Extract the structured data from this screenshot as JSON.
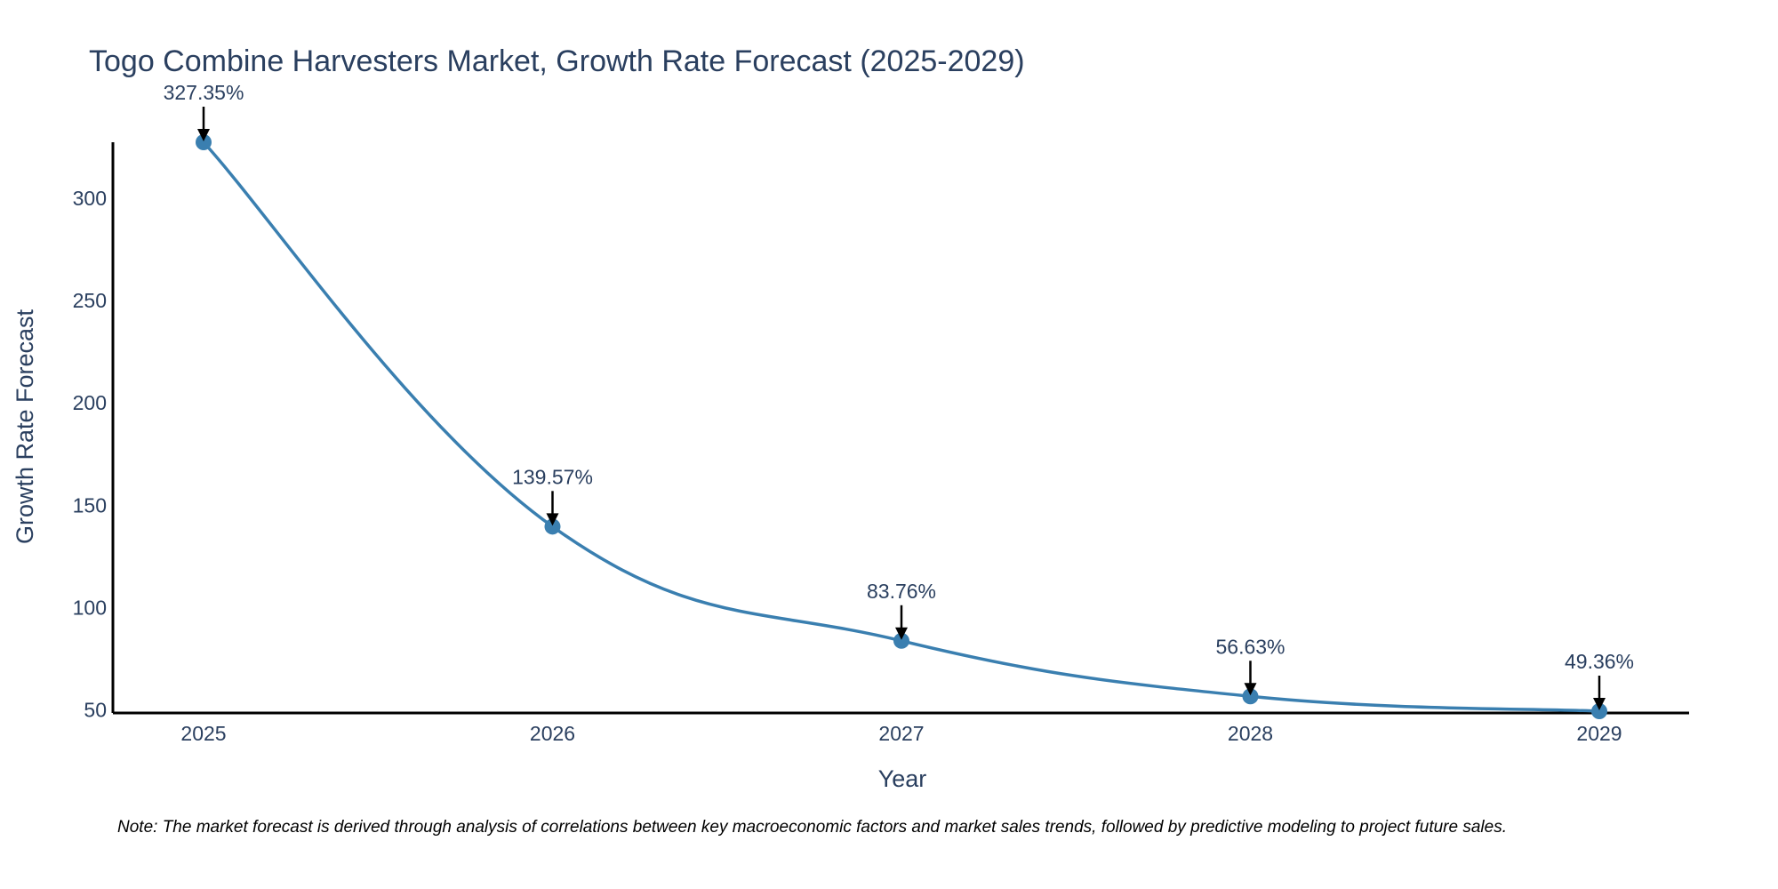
{
  "chart_data": {
    "type": "line",
    "title": "Togo Combine Harvesters Market, Growth Rate Forecast (2025-2029)",
    "xlabel": "Year",
    "ylabel": "Growth Rate Forecast",
    "categories": [
      "2025",
      "2026",
      "2027",
      "2028",
      "2029"
    ],
    "values": [
      327.35,
      139.57,
      83.76,
      56.63,
      49.36
    ],
    "data_labels": [
      "327.35%",
      "139.57%",
      "83.76%",
      "56.63%",
      "49.36%"
    ],
    "yticks": [
      50,
      100,
      150,
      200,
      250,
      300
    ],
    "ytick_labels": [
      "50",
      "100",
      "150",
      "200",
      "250",
      "300"
    ],
    "ylim": [
      49.36,
      327.35
    ],
    "line_color": "#3a7fb0",
    "marker_color": "#3a7fb0",
    "arrow_color": "#000000",
    "grid": false,
    "smooth": true
  },
  "note": "Note: The market forecast is derived through analysis of correlations between key macroeconomic factors and market sales trends, followed by predictive modeling to project future sales."
}
